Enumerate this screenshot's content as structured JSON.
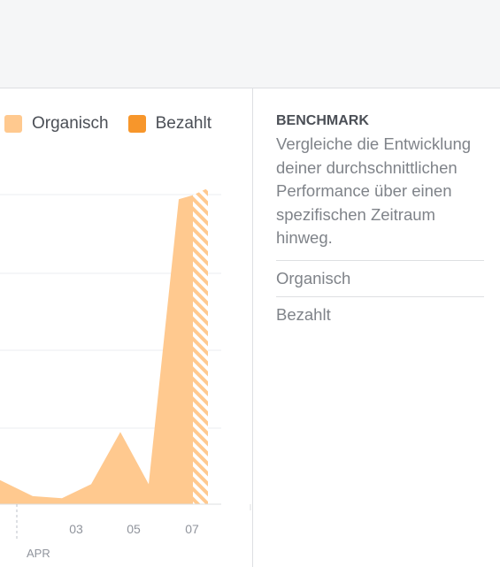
{
  "legend": {
    "organic_label": "Organisch",
    "paid_label": "Bezahlt",
    "organic_color": "#ffc98f",
    "paid_color": "#f7962b"
  },
  "chart_data": {
    "type": "area",
    "x_tick_labels": [
      "03",
      "05",
      "07"
    ],
    "month_label": "APR",
    "series": [
      {
        "name": "Organisch",
        "values": [
          6,
          2,
          1.5,
          5,
          18,
          5,
          76,
          77
        ],
        "partial_last": true
      }
    ],
    "ylim": [
      0,
      82
    ],
    "grid": true
  },
  "benchmark": {
    "title": "BENCHMARK",
    "description": "Vergleiche die Entwicklung deiner durchschnittlichen Performance über einen spezifischen Zeitraum hinweg.",
    "options": [
      "Organisch",
      "Bezahlt"
    ]
  }
}
